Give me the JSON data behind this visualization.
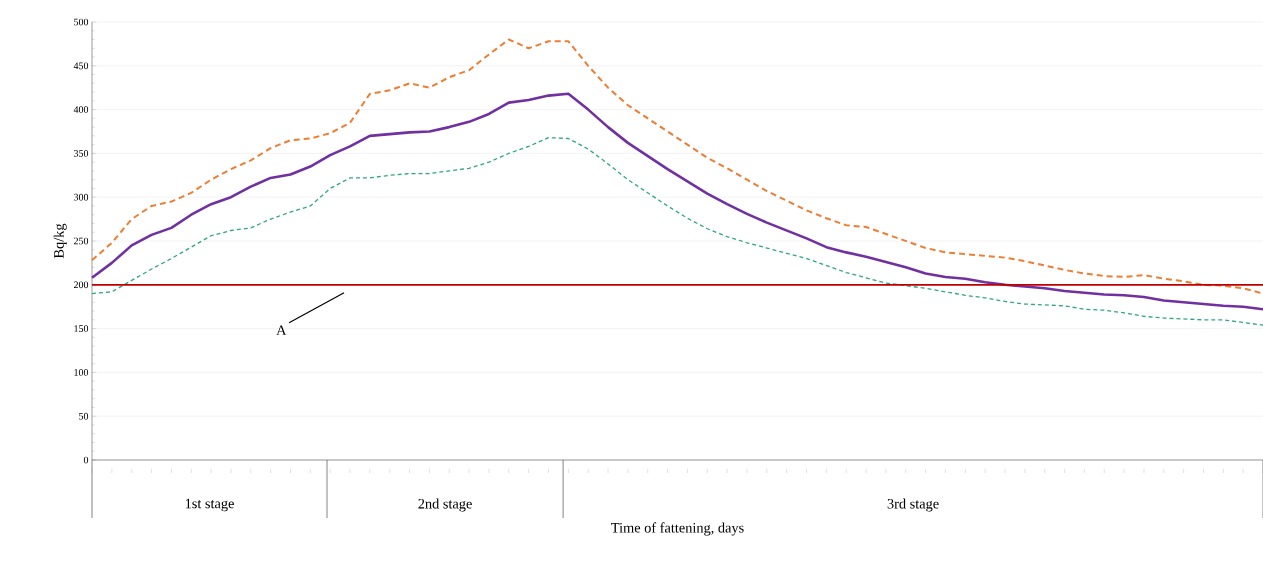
{
  "chart_data": {
    "type": "line",
    "xlabel": "Time of fattening, days",
    "ylabel": "Bq/kg",
    "categories": [
      null,
      null,
      null,
      null,
      null,
      null,
      null,
      null,
      null,
      null,
      null,
      null,
      null,
      null,
      null,
      null,
      null,
      null,
      null,
      null,
      null,
      null,
      null,
      null,
      null,
      null,
      null,
      null,
      null,
      null,
      null,
      null,
      null,
      null,
      null,
      null,
      null,
      null,
      null,
      null,
      null,
      null,
      null,
      null,
      null,
      null,
      null,
      null,
      null,
      null,
      null,
      null,
      null,
      null,
      null,
      null,
      null,
      null,
      null,
      null
    ],
    "series": [
      {
        "color": "#ed7d31",
        "line_style": "dashed",
        "values": [
          228,
          248,
          275,
          290,
          295,
          305,
          320,
          332,
          342,
          356,
          365,
          367,
          373,
          385,
          418,
          422,
          430,
          425,
          437,
          445,
          463,
          480,
          470,
          478,
          478,
          450,
          425,
          405,
          390,
          375,
          360,
          345,
          333,
          320,
          307,
          296,
          285,
          276,
          268,
          266,
          258,
          250,
          242,
          237,
          235,
          233,
          231,
          227,
          222,
          217,
          213,
          210,
          209,
          211,
          207,
          204,
          200,
          199,
          196,
          190
        ]
      },
      {
        "color": "#7030a0",
        "line_style": "solid",
        "values": [
          208,
          225,
          245,
          257,
          265,
          280,
          292,
          300,
          312,
          322,
          326,
          335,
          348,
          358,
          370,
          372,
          374,
          375,
          380,
          386,
          395,
          408,
          411,
          416,
          418,
          400,
          380,
          362,
          347,
          332,
          318,
          304,
          292,
          281,
          271,
          262,
          253,
          243,
          237,
          232,
          226,
          220,
          213,
          209,
          207,
          203,
          200,
          198,
          196,
          193,
          191,
          189,
          188,
          186,
          182,
          180,
          178,
          176,
          175,
          172
        ]
      },
      {
        "color": "#2ca87f",
        "line_style": "dashed",
        "values": [
          190,
          192,
          205,
          218,
          230,
          243,
          256,
          262,
          265,
          275,
          283,
          290,
          310,
          322,
          322,
          325,
          327,
          327,
          330,
          333,
          340,
          350,
          358,
          368,
          367,
          355,
          338,
          320,
          305,
          290,
          276,
          264,
          255,
          248,
          242,
          236,
          230,
          222,
          214,
          208,
          202,
          199,
          196,
          192,
          188,
          185,
          181,
          178,
          177,
          176,
          172,
          171,
          168,
          164,
          162,
          161,
          160,
          160,
          157,
          154
        ]
      }
    ],
    "ylim": [
      0,
      500
    ],
    "yticks": [
      0,
      50,
      100,
      150,
      200,
      250,
      300,
      350,
      400,
      450,
      500
    ],
    "grid": "y",
    "marker": "none",
    "ref_lines": [
      {
        "axis": "y",
        "value": 200,
        "color": "#c00000"
      }
    ],
    "annotations": [
      {
        "text": "A",
        "y": 200
      },
      "1st stage",
      "2nd stage",
      "3rd stage"
    ]
  }
}
